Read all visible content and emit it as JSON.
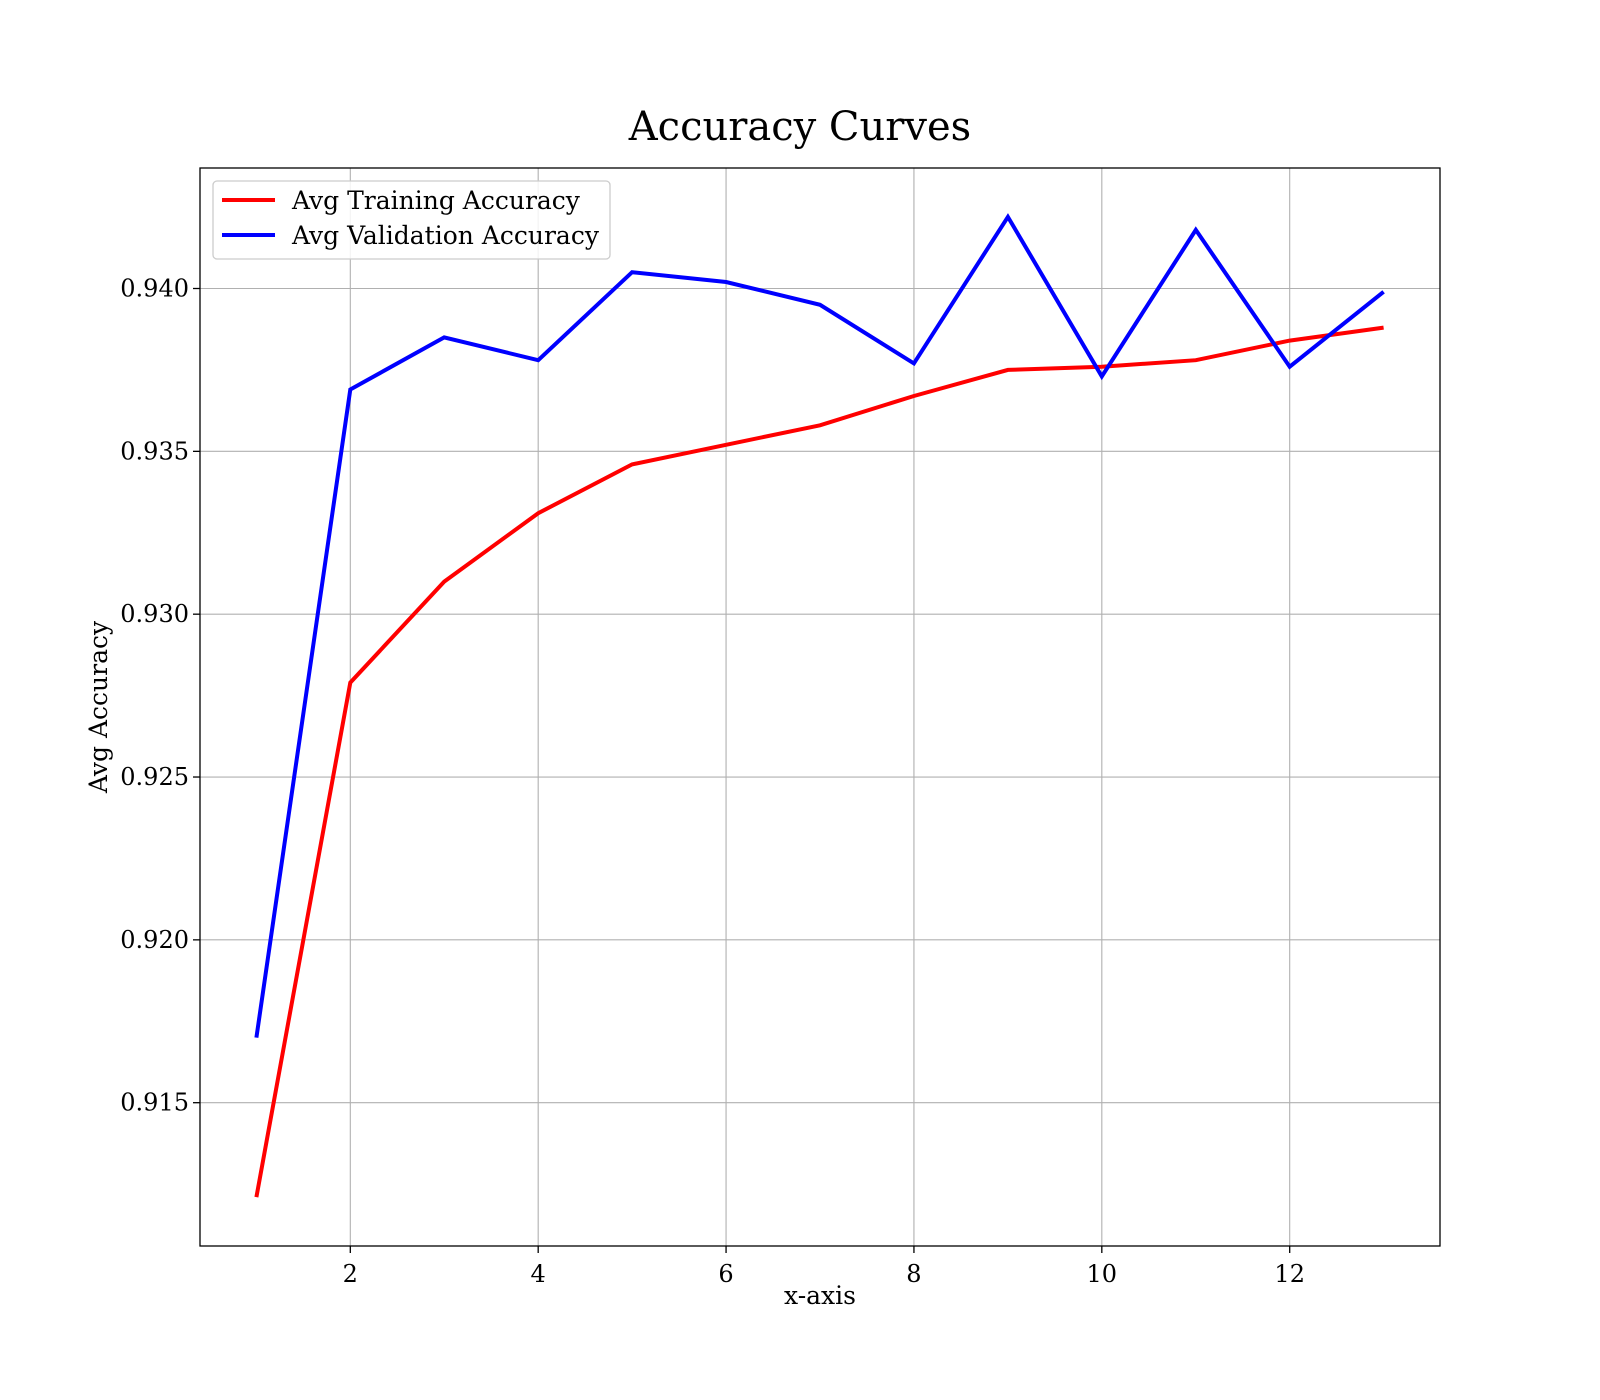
{
  "chart_data": {
    "type": "line",
    "title": "Accuracy Curves",
    "xlabel": "x-axis",
    "ylabel": "Avg Accuracy",
    "x": [
      1,
      2,
      3,
      4,
      5,
      6,
      7,
      8,
      9,
      10,
      11,
      12,
      13
    ],
    "xlim": [
      0.4,
      13.6
    ],
    "ylim": [
      0.9106,
      0.9437
    ],
    "xticks": [
      2,
      4,
      6,
      8,
      10,
      12
    ],
    "yticks": [
      0.915,
      0.92,
      0.925,
      0.93,
      0.935,
      0.94
    ],
    "xtick_labels": [
      "2",
      "4",
      "6",
      "8",
      "10",
      "12"
    ],
    "ytick_labels": [
      "0.915",
      "0.920",
      "0.925",
      "0.930",
      "0.935",
      "0.940"
    ],
    "grid": true,
    "legend_position": "top-left",
    "series": [
      {
        "name": "Avg Training Accuracy",
        "color": "#ff0000",
        "values": [
          0.9121,
          0.9279,
          0.931,
          0.9331,
          0.9346,
          0.9352,
          0.9358,
          0.9367,
          0.9375,
          0.9376,
          0.9378,
          0.9384,
          0.9388
        ]
      },
      {
        "name": "Avg Validation Accuracy",
        "color": "#0000ff",
        "values": [
          0.917,
          0.9369,
          0.9385,
          0.9378,
          0.9405,
          0.9402,
          0.9395,
          0.9377,
          0.9422,
          0.9373,
          0.9418,
          0.9376,
          0.9399
        ]
      }
    ]
  }
}
